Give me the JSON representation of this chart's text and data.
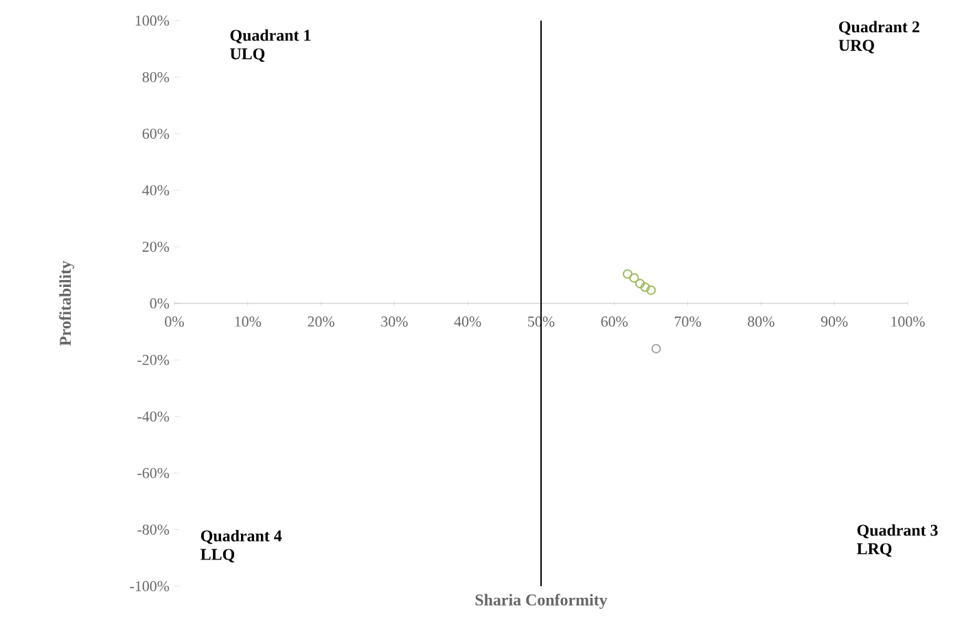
{
  "chart_data": {
    "type": "scatter",
    "xlabel": "Sharia Conformity",
    "ylabel": "Profitability",
    "annotations": [
      "Quadrant 1",
      "ULQ",
      "Quadrant 2",
      "URQ",
      "Quadrant 3",
      "LRQ",
      "Quadrant 4",
      "LLQ"
    ],
    "series": [
      {
        "x": [
          61.8,
          62.7,
          63.5,
          64.2,
          65.0,
          65.7
        ],
        "values": [
          10.4,
          9,
          7,
          5.7,
          4.7,
          -16
        ],
        "colors": [
          "#9bbb59",
          "#9bbb59",
          "#9bbb59",
          "#9bbb59",
          "#9bbb59",
          "#a6a6a6"
        ]
      }
    ],
    "marker": "circle",
    "xlim": [
      0,
      100
    ],
    "ylim": [
      -100,
      100
    ],
    "xticks": [
      {
        "value": 0,
        "label": "0%"
      },
      {
        "value": 10,
        "label": "10%"
      },
      {
        "value": 20,
        "label": "20%"
      },
      {
        "value": 30,
        "label": "30%"
      },
      {
        "value": 40,
        "label": "40%"
      },
      {
        "value": 50,
        "label": "50%"
      },
      {
        "value": 60,
        "label": "60%"
      },
      {
        "value": 70,
        "label": "70%"
      },
      {
        "value": 80,
        "label": "80%"
      },
      {
        "value": 90,
        "label": "90%"
      },
      {
        "value": 100,
        "label": "100%"
      }
    ],
    "yticks": [
      {
        "value": -100,
        "label": "-100%"
      },
      {
        "value": -80,
        "label": "-80%"
      },
      {
        "value": -60,
        "label": "-60%"
      },
      {
        "value": -40,
        "label": "-40%"
      },
      {
        "value": -20,
        "label": "-20%"
      },
      {
        "value": 0,
        "label": "0%"
      },
      {
        "value": 20,
        "label": "20%"
      },
      {
        "value": 40,
        "label": "40%"
      },
      {
        "value": 60,
        "label": "60%"
      },
      {
        "value": 80,
        "label": "80%"
      },
      {
        "value": 100,
        "label": "100%"
      }
    ],
    "ref_lines": [
      {
        "axis": "x",
        "value": 50,
        "color": "#000000"
      }
    ],
    "grid": false
  }
}
